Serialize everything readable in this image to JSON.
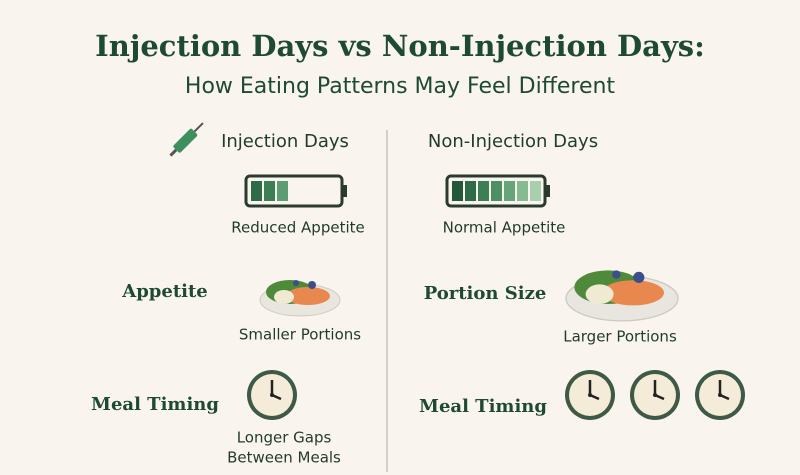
{
  "header": {
    "title": "Injection Days vs Non-Injection Days:",
    "subtitle": "How Eating Patterns May Feel Different"
  },
  "columns": [
    {
      "heading": "Injection Days",
      "battery_caption": "Reduced Appetite",
      "rows": [
        {
          "label": "Appetite",
          "caption": [
            "Smaller Portions"
          ]
        },
        {
          "label": "Meal Timing",
          "caption": [
            "Longer Gaps",
            "Between Meals"
          ]
        }
      ]
    },
    {
      "heading": "Non-Injection Days",
      "battery_caption": "Normal Appetite",
      "rows": [
        {
          "label": "Portion Size",
          "caption": [
            "Larger Portions"
          ]
        },
        {
          "label": "Meal Timing",
          "caption": []
        }
      ]
    }
  ]
}
